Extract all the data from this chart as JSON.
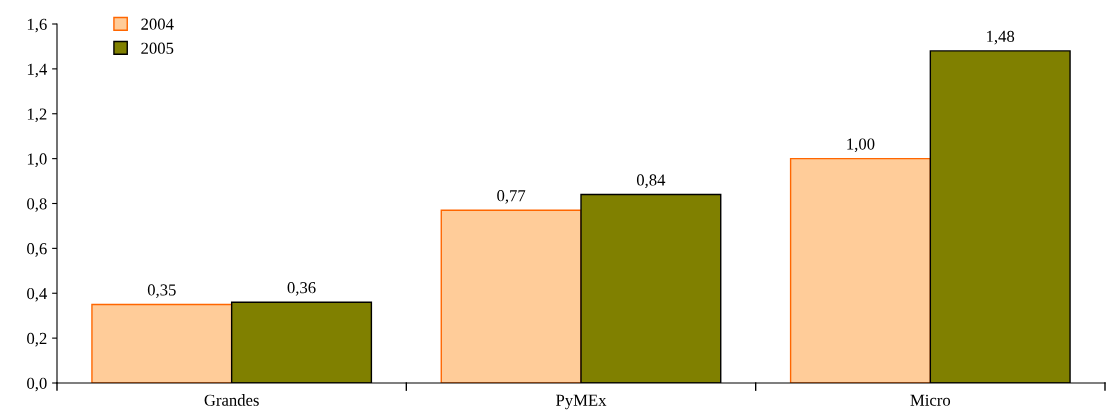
{
  "chart_data": {
    "type": "bar",
    "categories": [
      "Grandes",
      "PyMEx",
      "Micro"
    ],
    "series": [
      {
        "name": "2004",
        "color": "#ffcc99",
        "values": [
          0.35,
          0.77,
          1.0
        ],
        "value_labels": [
          "0,35",
          "0,77",
          "1,00"
        ]
      },
      {
        "name": "2005",
        "color": "#808000",
        "values": [
          0.36,
          0.84,
          1.48
        ],
        "value_labels": [
          "0,36",
          "0,84",
          "1,48"
        ]
      }
    ],
    "ylim": [
      0,
      1.6
    ],
    "yticks": [
      {
        "value": 0,
        "label": "0,0"
      },
      {
        "value": 0.2,
        "label": "0,2"
      },
      {
        "value": 0.4,
        "label": "0,4"
      },
      {
        "value": 0.6,
        "label": "0,6"
      },
      {
        "value": 0.8,
        "label": "0,8"
      },
      {
        "value": 1.0,
        "label": "1,0"
      },
      {
        "value": 1.2,
        "label": "1,2"
      },
      {
        "value": 1.4,
        "label": "1,4"
      },
      {
        "value": 1.6,
        "label": "1,6"
      }
    ],
    "grid": false,
    "legend": "top left"
  }
}
